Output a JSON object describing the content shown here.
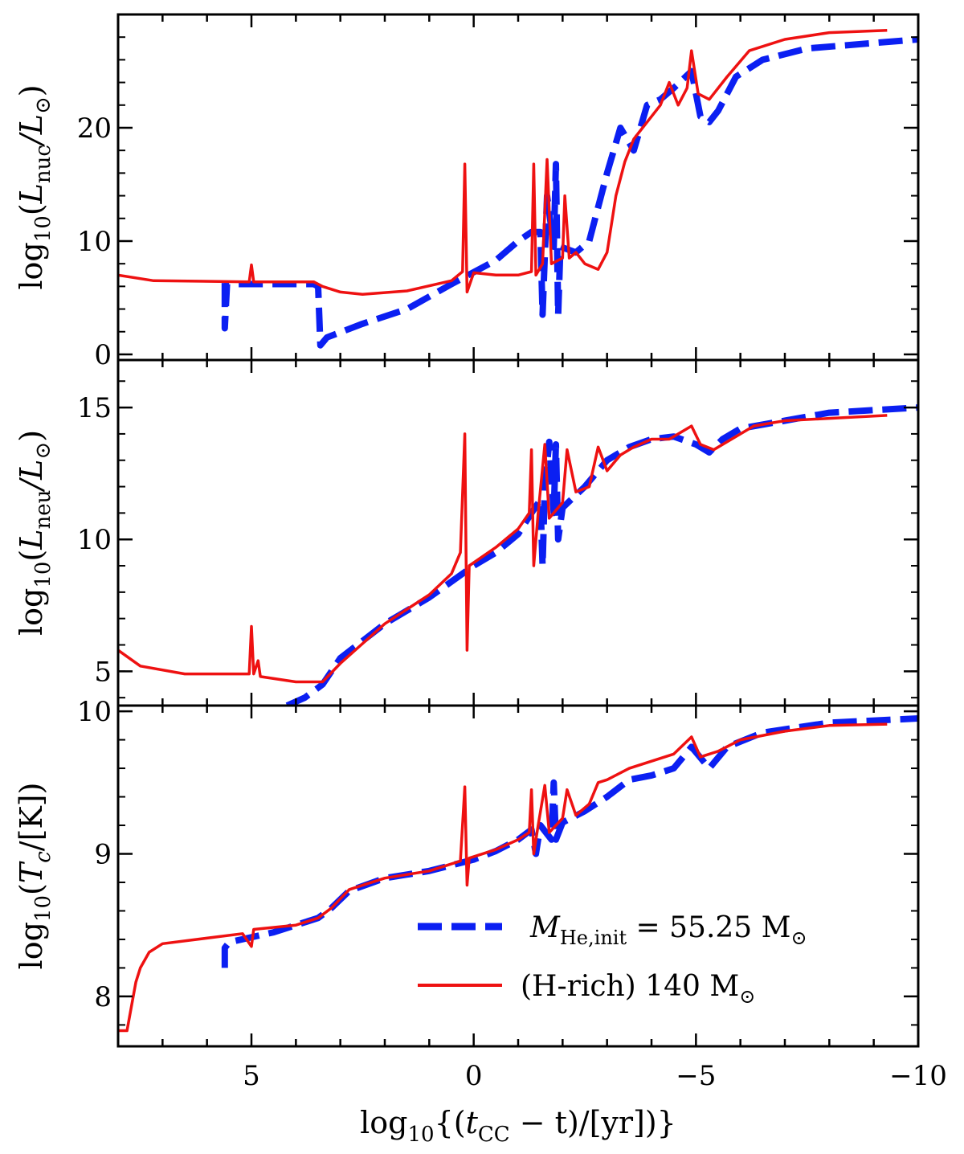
{
  "figure": {
    "x_axis": {
      "label": "log10{(tCC − t)/[yr]}",
      "label_parts": {
        "prefix": "log",
        "sub10": "10",
        "open": "{(",
        "t": "t",
        "sub": "CC",
        "rest": " − t)/[yr])}"
      },
      "range": [
        8,
        -10
      ],
      "tick_labels": [
        {
          "value": 5,
          "text": "5"
        },
        {
          "value": 0,
          "text": "0"
        },
        {
          "value": -5,
          "text": "−5"
        },
        {
          "value": -10,
          "text": "−10"
        }
      ]
    },
    "legend": {
      "entries": [
        {
          "series": "He-star",
          "label_main": "M",
          "label_sub": "He,init",
          "label_tail": " = 55.25 M",
          "label_sun": "⊙",
          "color": "#0b1ff2",
          "style": "dashed"
        },
        {
          "series": "H-rich",
          "label_main": "(H-rich) 140 M",
          "label_sub": "",
          "label_tail": "",
          "label_sun": "⊙",
          "color": "#ee1111",
          "style": "solid"
        }
      ]
    }
  },
  "chart_data": [
    {
      "type": "line",
      "panel": "top",
      "ylabel": "log10(Lnuc/L⊙)",
      "ylabel_parts": {
        "prefix": "log",
        "sub10": "10",
        "var": "L",
        "varsub": "nuc",
        "div": "/L",
        "sun": "⊙",
        "close": ")"
      },
      "xlim": [
        8,
        -10
      ],
      "ylim": [
        -0.5,
        30
      ],
      "y_ticks": [
        {
          "value": 0,
          "text": "0"
        },
        {
          "value": 10,
          "text": "10"
        },
        {
          "value": 20,
          "text": "20"
        }
      ],
      "series": [
        {
          "name": "M_He,init = 55.25 M⊙",
          "color": "#0b1ff2",
          "style": "dashed",
          "points": [
            [
              5.6,
              6.3
            ],
            [
              5.6,
              2.3
            ],
            [
              5.55,
              6.2
            ],
            [
              3.6,
              6.2
            ],
            [
              3.5,
              6.0
            ],
            [
              3.45,
              0.8
            ],
            [
              3.3,
              1.5
            ],
            [
              2.5,
              2.7
            ],
            [
              1.5,
              4.0
            ],
            [
              0.5,
              6.2
            ],
            [
              -0.5,
              8.3
            ],
            [
              -1.0,
              10.0
            ],
            [
              -1.3,
              10.8
            ],
            [
              -1.5,
              10.8
            ],
            [
              -1.55,
              3.5
            ],
            [
              -1.65,
              14.0
            ],
            [
              -1.8,
              9.5
            ],
            [
              -1.85,
              16.8
            ],
            [
              -1.9,
              3.5
            ],
            [
              -1.95,
              9.5
            ],
            [
              -2.3,
              9.0
            ],
            [
              -2.6,
              10.0
            ],
            [
              -2.8,
              13.0
            ],
            [
              -3.0,
              16.0
            ],
            [
              -3.3,
              20.0
            ],
            [
              -3.6,
              18.0
            ],
            [
              -3.9,
              22.0
            ],
            [
              -4.2,
              22.5
            ],
            [
              -4.5,
              23.5
            ],
            [
              -4.9,
              25.0
            ],
            [
              -5.1,
              21.0
            ],
            [
              -5.3,
              20.5
            ],
            [
              -5.5,
              21.5
            ],
            [
              -5.9,
              24.5
            ],
            [
              -6.5,
              26.0
            ],
            [
              -7.5,
              27.0
            ],
            [
              -10.0,
              27.8
            ]
          ]
        },
        {
          "name": "(H-rich) 140 M⊙",
          "color": "#ee1111",
          "style": "solid",
          "points": [
            [
              8.0,
              7.0
            ],
            [
              7.2,
              6.5
            ],
            [
              5.05,
              6.4
            ],
            [
              5.0,
              7.9
            ],
            [
              4.95,
              6.4
            ],
            [
              3.6,
              6.4
            ],
            [
              3.4,
              6.0
            ],
            [
              3.0,
              5.5
            ],
            [
              2.5,
              5.3
            ],
            [
              1.5,
              5.6
            ],
            [
              0.5,
              6.5
            ],
            [
              0.25,
              7.3
            ],
            [
              0.2,
              16.8
            ],
            [
              0.15,
              5.5
            ],
            [
              0.0,
              7.2
            ],
            [
              -0.5,
              7.0
            ],
            [
              -1.0,
              7.0
            ],
            [
              -1.3,
              7.3
            ],
            [
              -1.35,
              16.8
            ],
            [
              -1.4,
              7.0
            ],
            [
              -1.55,
              8.0
            ],
            [
              -1.65,
              17.2
            ],
            [
              -1.75,
              8.0
            ],
            [
              -2.0,
              8.5
            ],
            [
              -2.05,
              14.0
            ],
            [
              -2.15,
              8.5
            ],
            [
              -2.3,
              9.0
            ],
            [
              -2.5,
              8.0
            ],
            [
              -2.8,
              7.5
            ],
            [
              -3.0,
              9.0
            ],
            [
              -3.2,
              14.0
            ],
            [
              -3.4,
              17.0
            ],
            [
              -3.6,
              19.0
            ],
            [
              -3.8,
              20.0
            ],
            [
              -4.0,
              21.0
            ],
            [
              -4.2,
              22.0
            ],
            [
              -4.4,
              24.0
            ],
            [
              -4.6,
              22.0
            ],
            [
              -4.8,
              23.5
            ],
            [
              -4.9,
              26.8
            ],
            [
              -5.05,
              23.0
            ],
            [
              -5.3,
              22.5
            ],
            [
              -5.7,
              24.5
            ],
            [
              -6.2,
              26.8
            ],
            [
              -7.0,
              27.8
            ],
            [
              -8.0,
              28.4
            ],
            [
              -9.3,
              28.6
            ]
          ]
        }
      ]
    },
    {
      "type": "line",
      "panel": "middle",
      "ylabel": "log10(Lneu/L⊙)",
      "ylabel_parts": {
        "prefix": "log",
        "sub10": "10",
        "var": "L",
        "varsub": "neu",
        "div": "/L",
        "sun": "⊙",
        "close": ")"
      },
      "xlim": [
        8,
        -10
      ],
      "ylim": [
        3.7,
        16.8
      ],
      "y_ticks": [
        {
          "value": 5,
          "text": "5"
        },
        {
          "value": 10,
          "text": "10"
        },
        {
          "value": 15,
          "text": "15"
        }
      ],
      "series": [
        {
          "name": "M_He,init = 55.25 M⊙",
          "color": "#0b1ff2",
          "style": "dashed",
          "points": [
            [
              4.2,
              3.7
            ],
            [
              3.8,
              4.0
            ],
            [
              3.4,
              4.5
            ],
            [
              3.0,
              5.5
            ],
            [
              2.0,
              6.8
            ],
            [
              1.0,
              7.8
            ],
            [
              0.0,
              9.0
            ],
            [
              -0.5,
              9.5
            ],
            [
              -1.0,
              10.2
            ],
            [
              -1.3,
              11.0
            ],
            [
              -1.5,
              11.5
            ],
            [
              -1.55,
              9.0
            ],
            [
              -1.6,
              12.0
            ],
            [
              -1.7,
              13.7
            ],
            [
              -1.8,
              11.0
            ],
            [
              -1.85,
              13.6
            ],
            [
              -1.9,
              10.0
            ],
            [
              -2.0,
              11.2
            ],
            [
              -2.5,
              12.0
            ],
            [
              -3.0,
              13.0
            ],
            [
              -3.5,
              13.5
            ],
            [
              -4.0,
              13.8
            ],
            [
              -4.5,
              13.9
            ],
            [
              -5.0,
              13.6
            ],
            [
              -5.3,
              13.3
            ],
            [
              -5.6,
              13.8
            ],
            [
              -6.0,
              14.2
            ],
            [
              -7.0,
              14.5
            ],
            [
              -8.0,
              14.8
            ],
            [
              -10.0,
              15.0
            ]
          ]
        },
        {
          "name": "(H-rich) 140 M⊙",
          "color": "#ee1111",
          "style": "solid",
          "points": [
            [
              8.0,
              5.8
            ],
            [
              7.5,
              5.2
            ],
            [
              6.5,
              4.9
            ],
            [
              5.05,
              4.9
            ],
            [
              5.0,
              6.7
            ],
            [
              4.95,
              4.9
            ],
            [
              4.85,
              5.4
            ],
            [
              4.8,
              4.8
            ],
            [
              4.0,
              4.6
            ],
            [
              3.4,
              4.6
            ],
            [
              3.0,
              5.3
            ],
            [
              2.0,
              6.8
            ],
            [
              1.0,
              7.9
            ],
            [
              0.5,
              8.7
            ],
            [
              0.3,
              9.5
            ],
            [
              0.2,
              14.0
            ],
            [
              0.15,
              5.8
            ],
            [
              0.1,
              9.0
            ],
            [
              -0.5,
              9.7
            ],
            [
              -1.0,
              10.4
            ],
            [
              -1.25,
              11.0
            ],
            [
              -1.3,
              13.4
            ],
            [
              -1.35,
              9.0
            ],
            [
              -1.45,
              11.0
            ],
            [
              -1.6,
              13.6
            ],
            [
              -1.7,
              10.8
            ],
            [
              -2.0,
              11.4
            ],
            [
              -2.1,
              13.4
            ],
            [
              -2.3,
              11.8
            ],
            [
              -2.6,
              12.0
            ],
            [
              -2.8,
              13.5
            ],
            [
              -3.0,
              12.6
            ],
            [
              -3.3,
              13.2
            ],
            [
              -3.6,
              13.5
            ],
            [
              -4.0,
              13.8
            ],
            [
              -4.4,
              13.8
            ],
            [
              -4.9,
              14.3
            ],
            [
              -5.1,
              13.6
            ],
            [
              -5.4,
              13.4
            ],
            [
              -5.8,
              13.8
            ],
            [
              -6.3,
              14.3
            ],
            [
              -7.0,
              14.5
            ],
            [
              -9.3,
              14.7
            ]
          ]
        }
      ]
    },
    {
      "type": "line",
      "panel": "bottom",
      "ylabel": "log10(Tc/[K])",
      "ylabel_parts": {
        "prefix": "log",
        "sub10": "10",
        "var": "T",
        "varsub": "c",
        "div": "/[K]",
        "sun": "",
        "close": ")"
      },
      "xlim": [
        8,
        -10
      ],
      "ylim": [
        7.65,
        10.04
      ],
      "y_ticks": [
        {
          "value": 8,
          "text": "8"
        },
        {
          "value": 9,
          "text": "9"
        },
        {
          "value": 10,
          "text": "10"
        }
      ],
      "series": [
        {
          "name": "M_He,init = 55.25 M⊙",
          "color": "#0b1ff2",
          "style": "dashed",
          "points": [
            [
              5.6,
              8.2
            ],
            [
              5.6,
              8.34
            ],
            [
              5.5,
              8.38
            ],
            [
              4.5,
              8.45
            ],
            [
              3.5,
              8.55
            ],
            [
              3.2,
              8.62
            ],
            [
              2.8,
              8.74
            ],
            [
              2.0,
              8.83
            ],
            [
              1.0,
              8.88
            ],
            [
              0.0,
              8.96
            ],
            [
              -0.5,
              9.02
            ],
            [
              -1.0,
              9.1
            ],
            [
              -1.3,
              9.17
            ],
            [
              -1.4,
              9.0
            ],
            [
              -1.5,
              9.2
            ],
            [
              -1.75,
              9.1
            ],
            [
              -1.8,
              9.5
            ],
            [
              -1.85,
              9.1
            ],
            [
              -2.0,
              9.22
            ],
            [
              -2.5,
              9.3
            ],
            [
              -3.0,
              9.4
            ],
            [
              -3.5,
              9.52
            ],
            [
              -4.0,
              9.55
            ],
            [
              -4.5,
              9.6
            ],
            [
              -4.9,
              9.75
            ],
            [
              -5.3,
              9.6
            ],
            [
              -5.7,
              9.75
            ],
            [
              -6.5,
              9.85
            ],
            [
              -8.0,
              9.92
            ],
            [
              -10.0,
              9.95
            ]
          ]
        },
        {
          "name": "(H-rich) 140 M⊙",
          "color": "#ee1111",
          "style": "solid",
          "points": [
            [
              8.0,
              7.76
            ],
            [
              7.8,
              7.76
            ],
            [
              7.6,
              8.1
            ],
            [
              7.5,
              8.2
            ],
            [
              7.3,
              8.31
            ],
            [
              7.0,
              8.37
            ],
            [
              5.2,
              8.44
            ],
            [
              5.0,
              8.35
            ],
            [
              4.95,
              8.47
            ],
            [
              4.0,
              8.5
            ],
            [
              3.5,
              8.55
            ],
            [
              3.2,
              8.62
            ],
            [
              2.8,
              8.75
            ],
            [
              2.0,
              8.83
            ],
            [
              1.0,
              8.88
            ],
            [
              0.3,
              8.95
            ],
            [
              0.2,
              9.47
            ],
            [
              0.15,
              8.78
            ],
            [
              0.1,
              8.97
            ],
            [
              -0.5,
              9.03
            ],
            [
              -1.0,
              9.1
            ],
            [
              -1.25,
              9.15
            ],
            [
              -1.3,
              9.45
            ],
            [
              -1.35,
              9.0
            ],
            [
              -1.45,
              9.2
            ],
            [
              -1.6,
              9.48
            ],
            [
              -1.7,
              9.15
            ],
            [
              -2.0,
              9.25
            ],
            [
              -2.1,
              9.45
            ],
            [
              -2.3,
              9.27
            ],
            [
              -2.6,
              9.35
            ],
            [
              -2.8,
              9.5
            ],
            [
              -3.0,
              9.52
            ],
            [
              -3.5,
              9.6
            ],
            [
              -4.0,
              9.65
            ],
            [
              -4.5,
              9.7
            ],
            [
              -4.9,
              9.82
            ],
            [
              -5.1,
              9.68
            ],
            [
              -5.5,
              9.72
            ],
            [
              -6.0,
              9.8
            ],
            [
              -7.0,
              9.86
            ],
            [
              -8.0,
              9.9
            ],
            [
              -9.3,
              9.91
            ]
          ]
        }
      ]
    }
  ]
}
